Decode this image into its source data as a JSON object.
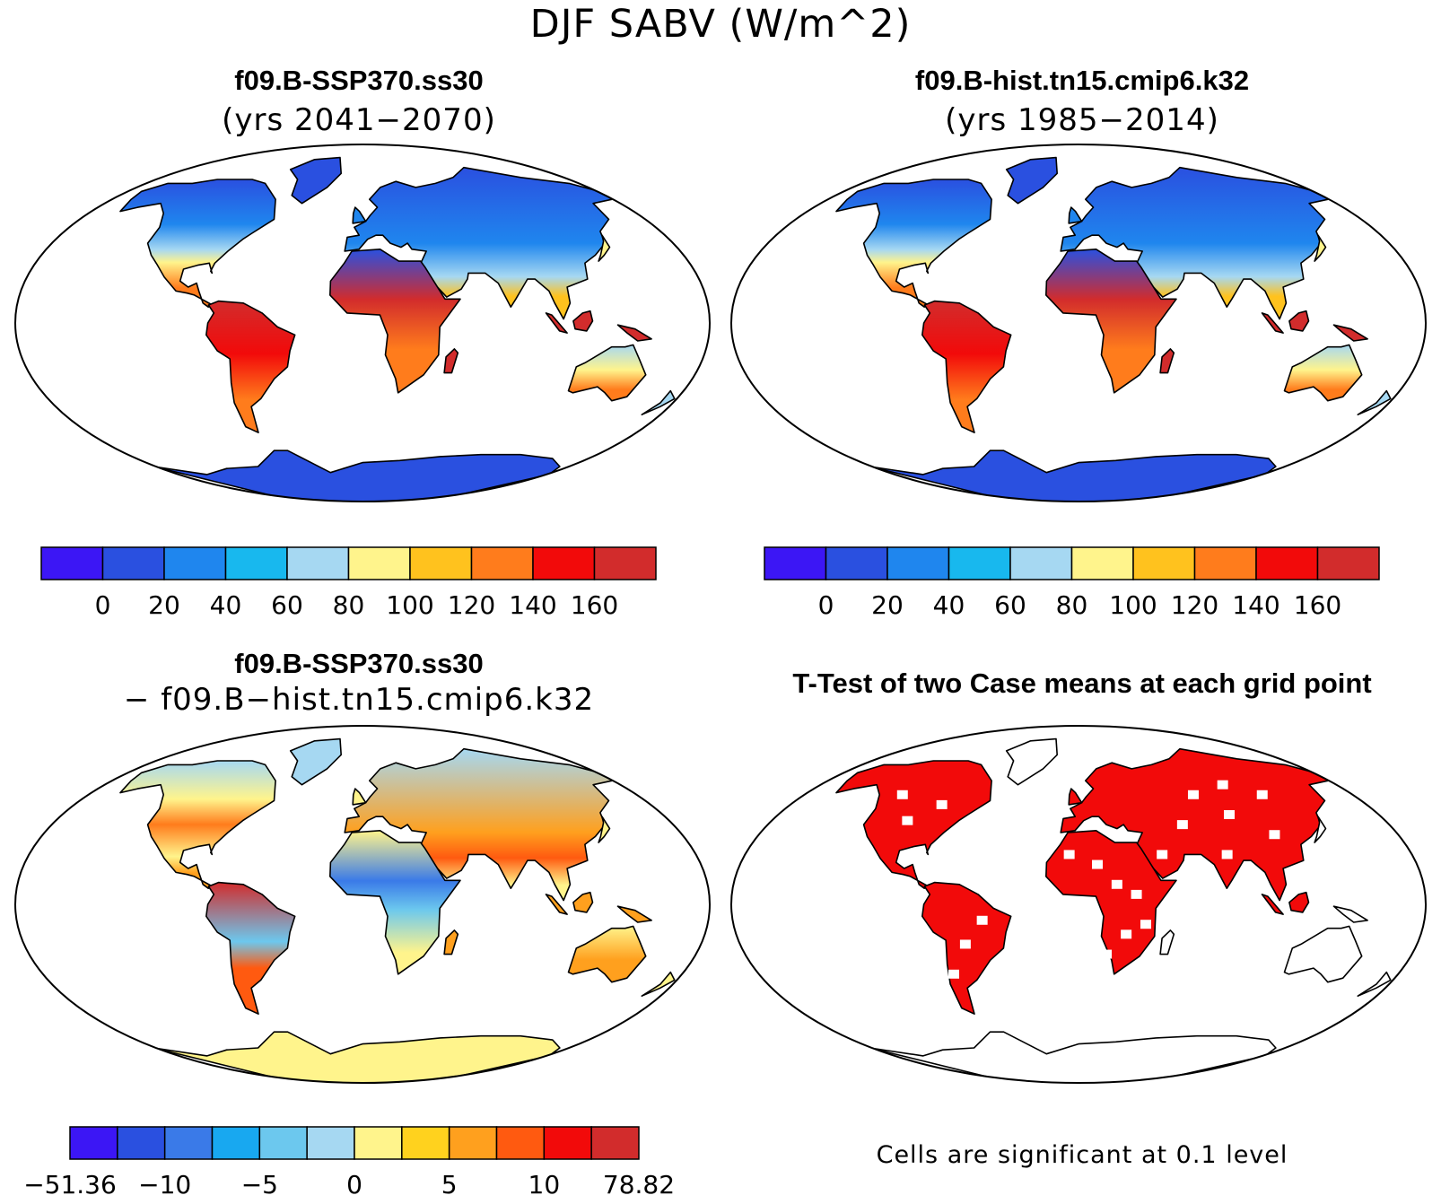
{
  "figure": {
    "title": "DJF SABV (W/m^2)"
  },
  "panels": [
    {
      "id": "ssp370",
      "title": "f09.B-SSP370.ss30",
      "subtitle": "(yrs 2041−2070)",
      "colorbar": {
        "colors": [
          "#3c16f5",
          "#2a50e0",
          "#1f86ee",
          "#18b8ee",
          "#a6d8f2",
          "#fff48c",
          "#ffc21e",
          "#ff7c1c",
          "#f20a0a",
          "#d22c2c"
        ],
        "labels": [
          "0",
          "20",
          "40",
          "60",
          "80",
          "100",
          "120",
          "140",
          "160"
        ]
      }
    },
    {
      "id": "hist",
      "title": "f09.B-hist.tn15.cmip6.k32",
      "subtitle": "(yrs 1985−2014)",
      "colorbar": {
        "colors": [
          "#3c16f5",
          "#2a50e0",
          "#1f86ee",
          "#18b8ee",
          "#a6d8f2",
          "#fff48c",
          "#ffc21e",
          "#ff7c1c",
          "#f20a0a",
          "#d22c2c"
        ],
        "labels": [
          "0",
          "20",
          "40",
          "60",
          "80",
          "100",
          "120",
          "140",
          "160"
        ]
      }
    },
    {
      "id": "diff",
      "title": "f09.B-SSP370.ss30",
      "subtitle": "− f09.B−hist.tn15.cmip6.k32",
      "colorbar": {
        "colors": [
          "#3c16f5",
          "#2a50e0",
          "#3a7ae8",
          "#18a8f0",
          "#6cc8ee",
          "#a6d8f2",
          "#fff48c",
          "#ffd21e",
          "#ffa01e",
          "#ff5a10",
          "#f20a0a",
          "#d22c2c"
        ],
        "labels": [
          "−51.36",
          "−10",
          "−5",
          "0",
          "5",
          "10",
          "78.82"
        ]
      }
    },
    {
      "id": "ttest",
      "title": "T-Test of two Case means at each grid point",
      "footnote": "Cells are significant at 0.1 level"
    }
  ]
}
